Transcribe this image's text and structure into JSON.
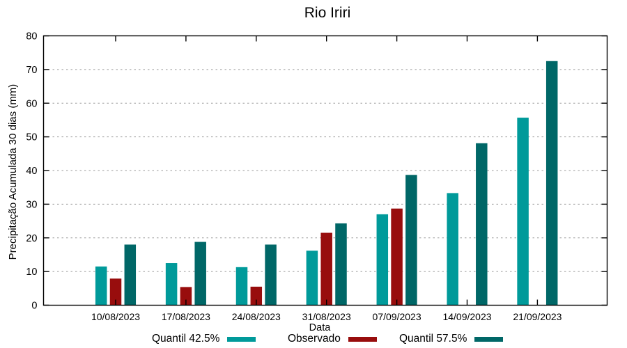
{
  "chart_data": {
    "type": "bar",
    "title": "Rio Iriri",
    "xlabel": "Data",
    "ylabel": "Precipitação Acumulada 30 dias (mm)",
    "ylim": [
      0,
      80
    ],
    "yticks": [
      0,
      10,
      20,
      30,
      40,
      50,
      60,
      70,
      80
    ],
    "grid": "horizontal-dotted",
    "legend_position": "bottom",
    "categories": [
      "10/08/2023",
      "17/08/2023",
      "24/08/2023",
      "31/08/2023",
      "07/09/2023",
      "14/09/2023",
      "21/09/2023"
    ],
    "series": [
      {
        "name": "Quantil 42.5%",
        "color": "#009a9a",
        "values": [
          11.5,
          12.5,
          11.3,
          16.2,
          27.0,
          33.3,
          55.7
        ]
      },
      {
        "name": "Observado",
        "color": "#980d0d",
        "values": [
          7.9,
          5.4,
          5.5,
          21.5,
          28.7,
          null,
          null
        ]
      },
      {
        "name": "Quantil 57.5%",
        "color": "#006767",
        "values": [
          18.0,
          18.8,
          18.0,
          24.3,
          38.7,
          48.1,
          72.5
        ]
      }
    ]
  },
  "colors": {
    "axis": "#000000",
    "grid": "#999999",
    "background": "#ffffff",
    "text": "#000000"
  }
}
